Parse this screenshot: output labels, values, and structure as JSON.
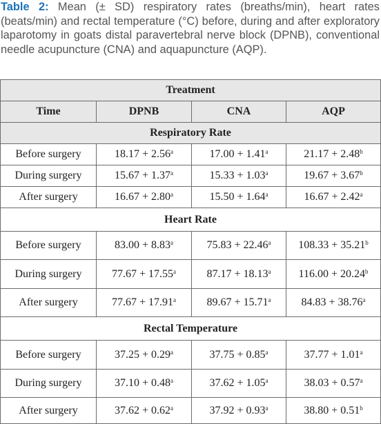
{
  "caption": {
    "label": "Table 2:",
    "text": " Mean (± SD) respiratory rates (breaths/min), heart rates (beats/min) and rectal temperature (°C) before, during and after exploratory laparotomy in goats distal paravertebral nerve block (DPNB), conventional needle acupuncture (CNA) and aquapuncture (AQP)."
  },
  "table": {
    "group_header": "Treatment",
    "columns": [
      "Time",
      "DPNB",
      "CNA",
      "AQP"
    ],
    "sections": [
      {
        "title": "Respiratory Rate",
        "rows": [
          {
            "time": "Before surgery",
            "cells": [
              {
                "v": "18.17 + 2.56",
                "s": "a"
              },
              {
                "v": "17.00 + 1.41",
                "s": "a"
              },
              {
                "v": "21.17 + 2.48",
                "s": "b"
              }
            ]
          },
          {
            "time": "During surgery",
            "cells": [
              {
                "v": "15.67 + 1.37",
                "s": "a"
              },
              {
                "v": "15.33 + 1.03",
                "s": "a"
              },
              {
                "v": "19.67 + 3.67",
                "s": "b"
              }
            ]
          },
          {
            "time": "After surgery",
            "cells": [
              {
                "v": "16.67 + 2.80",
                "s": "a"
              },
              {
                "v": "15.50 + 1.64",
                "s": "a"
              },
              {
                "v": "16.67 + 2.42",
                "s": "a"
              }
            ]
          }
        ]
      },
      {
        "title": "Heart Rate",
        "rows": [
          {
            "time": "Before surgery",
            "cells": [
              {
                "v": "83.00 + 8.83",
                "s": "a"
              },
              {
                "v": "75.83 + 22.46",
                "s": "a"
              },
              {
                "v": "108.33 + 35.21",
                "s": "b"
              }
            ]
          },
          {
            "time": "During surgery",
            "cells": [
              {
                "v": "77.67 + 17.55",
                "s": "a"
              },
              {
                "v": "87.17 + 18.13",
                "s": "a"
              },
              {
                "v": "116.00 + 20.24",
                "s": "b"
              }
            ]
          },
          {
            "time": "After surgery",
            "cells": [
              {
                "v": "77.67 + 17.91",
                "s": "a"
              },
              {
                "v": "89.67 + 15.71",
                "s": "a"
              },
              {
                "v": "84.83 + 38.76",
                "s": "a"
              }
            ]
          }
        ]
      },
      {
        "title": "Rectal Temperature",
        "rows": [
          {
            "time": "Before surgery",
            "cells": [
              {
                "v": "37.25 + 0.29",
                "s": "a"
              },
              {
                "v": "37.75 + 0.85",
                "s": "a"
              },
              {
                "v": "37.77 + 1.01",
                "s": "a"
              }
            ]
          },
          {
            "time": "During surgery",
            "cells": [
              {
                "v": "37.10 + 0.48",
                "s": "a"
              },
              {
                "v": "37.62 + 1.05",
                "s": "a"
              },
              {
                "v": "38.03 + 0.57",
                "s": "a"
              }
            ]
          },
          {
            "time": "After surgery",
            "cells": [
              {
                "v": "37.62 + 0.62",
                "s": "a"
              },
              {
                "v": "37.92 + 0.93",
                "s": "a"
              },
              {
                "v": "38.80 + 0.51",
                "s": "b"
              }
            ]
          }
        ]
      }
    ]
  },
  "colors": {
    "caption_label": "#1d72b8",
    "caption_text": "#555555",
    "header_shade": "#e7e7e7",
    "border": "#6b6b6b"
  }
}
